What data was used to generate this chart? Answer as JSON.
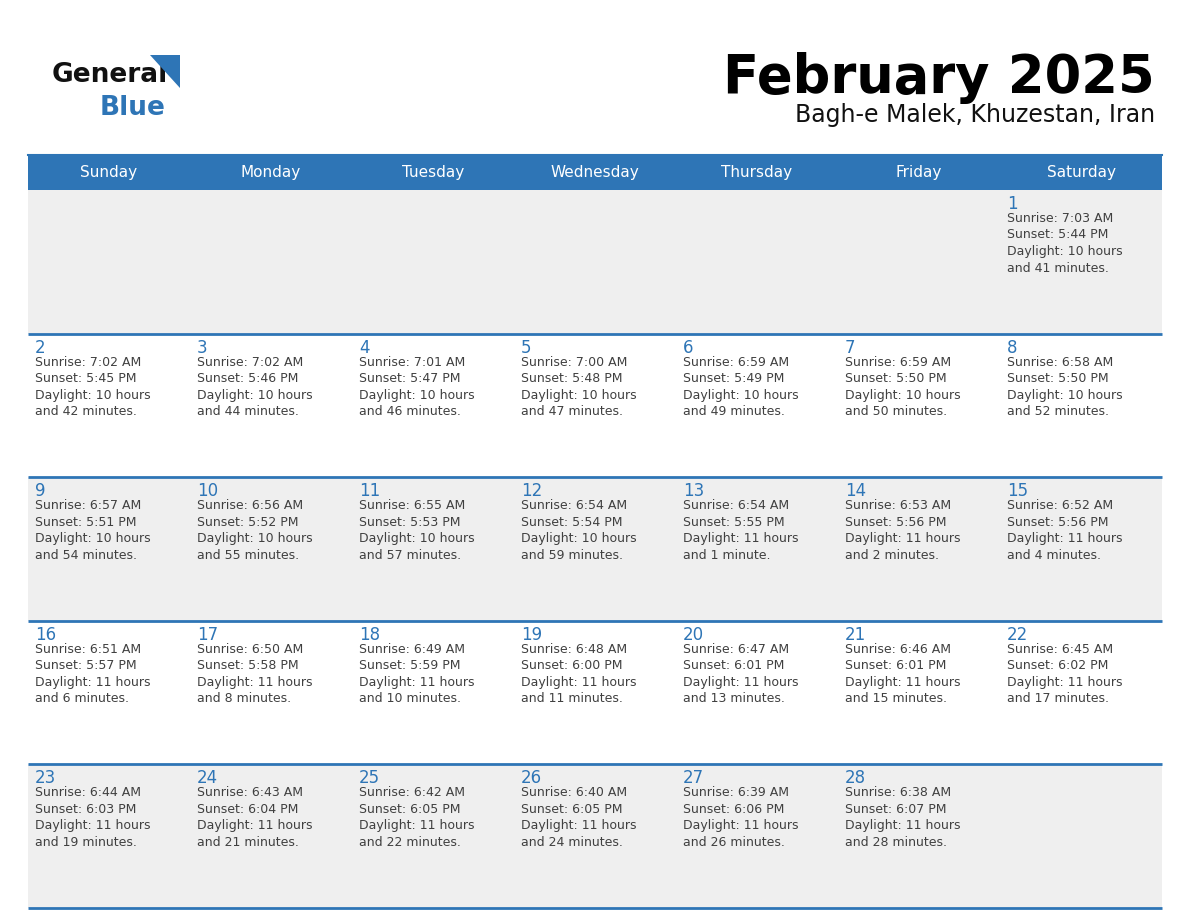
{
  "title": "February 2025",
  "subtitle": "Bagh-e Malek, Khuzestan, Iran",
  "header_bg": "#2E75B6",
  "header_text": "#FFFFFF",
  "day_names": [
    "Sunday",
    "Monday",
    "Tuesday",
    "Wednesday",
    "Thursday",
    "Friday",
    "Saturday"
  ],
  "cell_bg_even": "#EFEFEF",
  "cell_bg_odd": "#FFFFFF",
  "grid_line_color": "#2E75B6",
  "number_color": "#2E75B6",
  "info_color": "#404040",
  "logo_general_color": "#111111",
  "logo_blue_color": "#2E75B6",
  "days": [
    {
      "day": 1,
      "col": 6,
      "row": 0,
      "sunrise": "7:03 AM",
      "sunset": "5:44 PM",
      "daylight_hours": 10,
      "daylight_mins": "41 minutes."
    },
    {
      "day": 2,
      "col": 0,
      "row": 1,
      "sunrise": "7:02 AM",
      "sunset": "5:45 PM",
      "daylight_hours": 10,
      "daylight_mins": "42 minutes."
    },
    {
      "day": 3,
      "col": 1,
      "row": 1,
      "sunrise": "7:02 AM",
      "sunset": "5:46 PM",
      "daylight_hours": 10,
      "daylight_mins": "44 minutes."
    },
    {
      "day": 4,
      "col": 2,
      "row": 1,
      "sunrise": "7:01 AM",
      "sunset": "5:47 PM",
      "daylight_hours": 10,
      "daylight_mins": "46 minutes."
    },
    {
      "day": 5,
      "col": 3,
      "row": 1,
      "sunrise": "7:00 AM",
      "sunset": "5:48 PM",
      "daylight_hours": 10,
      "daylight_mins": "47 minutes."
    },
    {
      "day": 6,
      "col": 4,
      "row": 1,
      "sunrise": "6:59 AM",
      "sunset": "5:49 PM",
      "daylight_hours": 10,
      "daylight_mins": "49 minutes."
    },
    {
      "day": 7,
      "col": 5,
      "row": 1,
      "sunrise": "6:59 AM",
      "sunset": "5:50 PM",
      "daylight_hours": 10,
      "daylight_mins": "50 minutes."
    },
    {
      "day": 8,
      "col": 6,
      "row": 1,
      "sunrise": "6:58 AM",
      "sunset": "5:50 PM",
      "daylight_hours": 10,
      "daylight_mins": "52 minutes."
    },
    {
      "day": 9,
      "col": 0,
      "row": 2,
      "sunrise": "6:57 AM",
      "sunset": "5:51 PM",
      "daylight_hours": 10,
      "daylight_mins": "54 minutes."
    },
    {
      "day": 10,
      "col": 1,
      "row": 2,
      "sunrise": "6:56 AM",
      "sunset": "5:52 PM",
      "daylight_hours": 10,
      "daylight_mins": "55 minutes."
    },
    {
      "day": 11,
      "col": 2,
      "row": 2,
      "sunrise": "6:55 AM",
      "sunset": "5:53 PM",
      "daylight_hours": 10,
      "daylight_mins": "57 minutes."
    },
    {
      "day": 12,
      "col": 3,
      "row": 2,
      "sunrise": "6:54 AM",
      "sunset": "5:54 PM",
      "daylight_hours": 10,
      "daylight_mins": "59 minutes."
    },
    {
      "day": 13,
      "col": 4,
      "row": 2,
      "sunrise": "6:54 AM",
      "sunset": "5:55 PM",
      "daylight_hours": 11,
      "daylight_mins": "1 minute."
    },
    {
      "day": 14,
      "col": 5,
      "row": 2,
      "sunrise": "6:53 AM",
      "sunset": "5:56 PM",
      "daylight_hours": 11,
      "daylight_mins": "2 minutes."
    },
    {
      "day": 15,
      "col": 6,
      "row": 2,
      "sunrise": "6:52 AM",
      "sunset": "5:56 PM",
      "daylight_hours": 11,
      "daylight_mins": "4 minutes."
    },
    {
      "day": 16,
      "col": 0,
      "row": 3,
      "sunrise": "6:51 AM",
      "sunset": "5:57 PM",
      "daylight_hours": 11,
      "daylight_mins": "6 minutes."
    },
    {
      "day": 17,
      "col": 1,
      "row": 3,
      "sunrise": "6:50 AM",
      "sunset": "5:58 PM",
      "daylight_hours": 11,
      "daylight_mins": "8 minutes."
    },
    {
      "day": 18,
      "col": 2,
      "row": 3,
      "sunrise": "6:49 AM",
      "sunset": "5:59 PM",
      "daylight_hours": 11,
      "daylight_mins": "10 minutes."
    },
    {
      "day": 19,
      "col": 3,
      "row": 3,
      "sunrise": "6:48 AM",
      "sunset": "6:00 PM",
      "daylight_hours": 11,
      "daylight_mins": "11 minutes."
    },
    {
      "day": 20,
      "col": 4,
      "row": 3,
      "sunrise": "6:47 AM",
      "sunset": "6:01 PM",
      "daylight_hours": 11,
      "daylight_mins": "13 minutes."
    },
    {
      "day": 21,
      "col": 5,
      "row": 3,
      "sunrise": "6:46 AM",
      "sunset": "6:01 PM",
      "daylight_hours": 11,
      "daylight_mins": "15 minutes."
    },
    {
      "day": 22,
      "col": 6,
      "row": 3,
      "sunrise": "6:45 AM",
      "sunset": "6:02 PM",
      "daylight_hours": 11,
      "daylight_mins": "17 minutes."
    },
    {
      "day": 23,
      "col": 0,
      "row": 4,
      "sunrise": "6:44 AM",
      "sunset": "6:03 PM",
      "daylight_hours": 11,
      "daylight_mins": "19 minutes."
    },
    {
      "day": 24,
      "col": 1,
      "row": 4,
      "sunrise": "6:43 AM",
      "sunset": "6:04 PM",
      "daylight_hours": 11,
      "daylight_mins": "21 minutes."
    },
    {
      "day": 25,
      "col": 2,
      "row": 4,
      "sunrise": "6:42 AM",
      "sunset": "6:05 PM",
      "daylight_hours": 11,
      "daylight_mins": "22 minutes."
    },
    {
      "day": 26,
      "col": 3,
      "row": 4,
      "sunrise": "6:40 AM",
      "sunset": "6:05 PM",
      "daylight_hours": 11,
      "daylight_mins": "24 minutes."
    },
    {
      "day": 27,
      "col": 4,
      "row": 4,
      "sunrise": "6:39 AM",
      "sunset": "6:06 PM",
      "daylight_hours": 11,
      "daylight_mins": "26 minutes."
    },
    {
      "day": 28,
      "col": 5,
      "row": 4,
      "sunrise": "6:38 AM",
      "sunset": "6:07 PM",
      "daylight_hours": 11,
      "daylight_mins": "28 minutes."
    }
  ]
}
